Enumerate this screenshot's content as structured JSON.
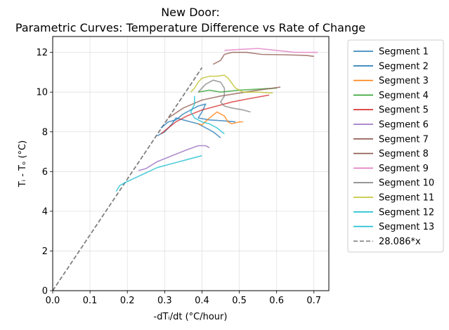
{
  "chart_data": {
    "type": "line",
    "title": "New Door:",
    "subtitle": "Parametric Curves: Temperature Difference vs Rate of Change",
    "xlabel": "-dTᵢ/dt (°C/hour)",
    "ylabel": "Tᵢ - Tₒ (°C)",
    "xlim": [
      0.0,
      0.74
    ],
    "ylim": [
      0,
      12.8
    ],
    "xticks": [
      "0.0",
      "0.1",
      "0.2",
      "0.3",
      "0.4",
      "0.5",
      "0.6",
      "0.7"
    ],
    "yticks": [
      "0",
      "2",
      "4",
      "6",
      "8",
      "10",
      "12"
    ],
    "grid": true,
    "legend_position": "outside-right",
    "series": [
      {
        "name": "Segment 1",
        "color": "#1f77b4",
        "points": [
          [
            0.28,
            7.8
          ],
          [
            0.3,
            8.0
          ],
          [
            0.32,
            8.4
          ],
          [
            0.33,
            8.7
          ],
          [
            0.35,
            8.6
          ],
          [
            0.37,
            8.5
          ],
          [
            0.39,
            8.4
          ],
          [
            0.41,
            8.2
          ],
          [
            0.43,
            8.0
          ],
          [
            0.45,
            7.7
          ]
        ]
      },
      {
        "name": "Segment 2",
        "color": "#1f77b4",
        "points": [
          [
            0.29,
            8.2
          ],
          [
            0.31,
            8.5
          ],
          [
            0.33,
            8.6
          ],
          [
            0.35,
            8.9
          ],
          [
            0.37,
            9.1
          ],
          [
            0.39,
            9.3
          ],
          [
            0.41,
            9.4
          ],
          [
            0.4,
            9.0
          ],
          [
            0.39,
            8.7
          ],
          [
            0.42,
            8.6
          ],
          [
            0.46,
            8.55
          ],
          [
            0.49,
            8.5
          ]
        ]
      },
      {
        "name": "Segment 3",
        "color": "#ff7f0e",
        "points": [
          [
            0.39,
            8.4
          ],
          [
            0.4,
            8.35
          ],
          [
            0.42,
            8.7
          ],
          [
            0.44,
            9.0
          ],
          [
            0.46,
            8.8
          ],
          [
            0.47,
            8.5
          ],
          [
            0.48,
            8.4
          ],
          [
            0.5,
            8.5
          ],
          [
            0.51,
            8.5
          ]
        ]
      },
      {
        "name": "Segment 4",
        "color": "#2ca02c",
        "points": [
          [
            0.39,
            10.0
          ],
          [
            0.42,
            10.1
          ],
          [
            0.45,
            10.0
          ],
          [
            0.5,
            10.1
          ],
          [
            0.55,
            10.15
          ],
          [
            0.6,
            10.2
          ]
        ]
      },
      {
        "name": "Segment 5",
        "color": "#d62728",
        "points": [
          [
            0.29,
            7.9
          ],
          [
            0.31,
            8.2
          ],
          [
            0.33,
            8.5
          ],
          [
            0.36,
            8.8
          ],
          [
            0.4,
            9.1
          ],
          [
            0.44,
            9.3
          ],
          [
            0.48,
            9.5
          ],
          [
            0.52,
            9.65
          ],
          [
            0.58,
            9.85
          ]
        ]
      },
      {
        "name": "Segment 6",
        "color": "#9467bd",
        "points": [
          [
            0.23,
            6.05
          ],
          [
            0.25,
            6.15
          ],
          [
            0.28,
            6.5
          ],
          [
            0.32,
            6.8
          ],
          [
            0.36,
            7.1
          ],
          [
            0.39,
            7.3
          ],
          [
            0.41,
            7.3
          ],
          [
            0.42,
            7.2
          ]
        ]
      },
      {
        "name": "Segment 7",
        "color": "#8c564b",
        "points": [
          [
            0.31,
            8.7
          ],
          [
            0.35,
            9.2
          ],
          [
            0.4,
            9.6
          ],
          [
            0.45,
            9.8
          ],
          [
            0.5,
            9.95
          ],
          [
            0.55,
            10.1
          ],
          [
            0.61,
            10.25
          ]
        ]
      },
      {
        "name": "Segment 8",
        "color": "#8c564b",
        "points": [
          [
            0.43,
            11.4
          ],
          [
            0.45,
            11.6
          ],
          [
            0.46,
            11.9
          ],
          [
            0.48,
            12.0
          ],
          [
            0.52,
            12.0
          ],
          [
            0.56,
            11.9
          ],
          [
            0.62,
            11.88
          ],
          [
            0.68,
            11.85
          ],
          [
            0.7,
            11.8
          ]
        ]
      },
      {
        "name": "Segment 9",
        "color": "#e377c2",
        "points": [
          [
            0.46,
            12.1
          ],
          [
            0.5,
            12.15
          ],
          [
            0.55,
            12.2
          ],
          [
            0.6,
            12.1
          ],
          [
            0.65,
            12.0
          ],
          [
            0.71,
            12.0
          ]
        ]
      },
      {
        "name": "Segment 10",
        "color": "#7f7f7f",
        "points": [
          [
            0.39,
            10.0
          ],
          [
            0.41,
            10.4
          ],
          [
            0.43,
            10.6
          ],
          [
            0.45,
            10.5
          ],
          [
            0.46,
            10.2
          ],
          [
            0.46,
            9.8
          ],
          [
            0.45,
            9.5
          ],
          [
            0.46,
            9.3
          ],
          [
            0.48,
            9.2
          ],
          [
            0.51,
            9.1
          ],
          [
            0.53,
            9.0
          ]
        ]
      },
      {
        "name": "Segment 11",
        "color": "#bcbd22",
        "points": [
          [
            0.37,
            10.0
          ],
          [
            0.38,
            10.2
          ],
          [
            0.39,
            10.5
          ],
          [
            0.4,
            10.7
          ],
          [
            0.42,
            10.8
          ],
          [
            0.44,
            10.8
          ],
          [
            0.46,
            10.85
          ],
          [
            0.47,
            10.7
          ],
          [
            0.49,
            10.2
          ],
          [
            0.51,
            10.0
          ],
          [
            0.55,
            10.0
          ],
          [
            0.59,
            9.95
          ]
        ]
      },
      {
        "name": "Segment 12",
        "color": "#17becf",
        "points": [
          [
            0.38,
            9.8
          ],
          [
            0.38,
            9.4
          ],
          [
            0.37,
            9.0
          ],
          [
            0.38,
            8.7
          ],
          [
            0.4,
            8.5
          ],
          [
            0.42,
            8.4
          ],
          [
            0.44,
            8.2
          ],
          [
            0.46,
            7.9
          ]
        ]
      },
      {
        "name": "Segment 13",
        "color": "#17becf",
        "points": [
          [
            0.17,
            5.0
          ],
          [
            0.18,
            5.3
          ],
          [
            0.2,
            5.5
          ],
          [
            0.24,
            5.85
          ],
          [
            0.28,
            6.2
          ],
          [
            0.32,
            6.4
          ],
          [
            0.36,
            6.6
          ],
          [
            0.4,
            6.8
          ]
        ]
      }
    ],
    "reference_line": {
      "name": "28.086*x",
      "slope": 28.086,
      "color": "#808080",
      "x_range": [
        0.0,
        0.4
      ]
    }
  }
}
